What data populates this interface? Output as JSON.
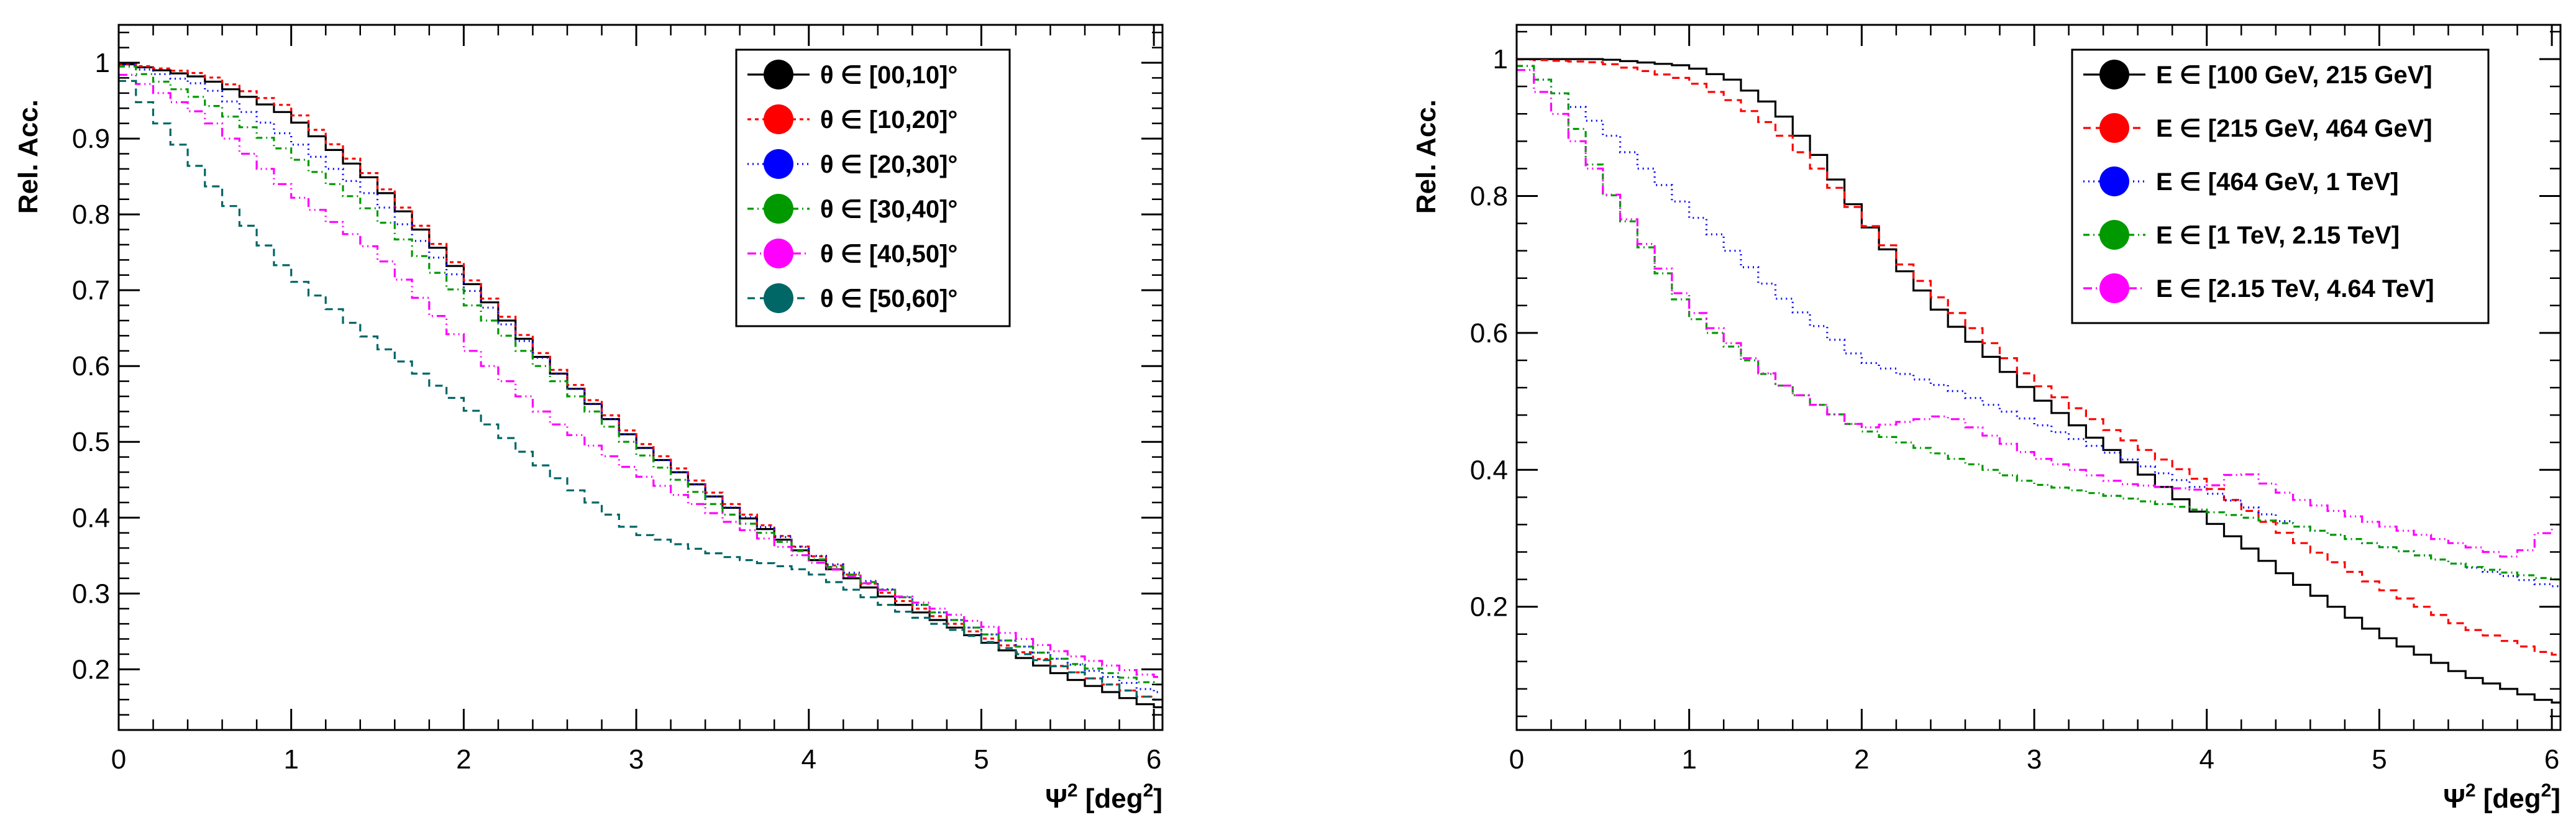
{
  "chart_data": [
    {
      "type": "line",
      "xlabel": "Ψ",
      "xlabel_units": " [deg",
      "xlabel_sup": "2",
      "xlabel_units_close": "]",
      "xlabel_sup_prefix": "2",
      "ylabel": "Rel. Acc.",
      "xlim": [
        0,
        6.05
      ],
      "ylim": [
        0.12,
        1.05
      ],
      "xticks": [
        0,
        1,
        2,
        3,
        4,
        5,
        6
      ],
      "xtick_labels": [
        "0",
        "1",
        "2",
        "3",
        "4",
        "5",
        "6"
      ],
      "yticks": [
        0.2,
        0.3,
        0.4,
        0.5,
        0.6,
        0.7,
        0.8,
        0.9,
        1
      ],
      "ytick_labels": [
        "0.2",
        "0.3",
        "0.4",
        "0.5",
        "0.6",
        "0.7",
        "0.8",
        "0.9",
        "1"
      ],
      "legend_position": "top-right",
      "series": [
        {
          "name": "θ ∈ [00,10]°",
          "color": "#000000",
          "dash": "solid",
          "x": [
            0,
            0.5,
            1,
            1.5,
            2,
            2.5,
            3,
            3.5,
            4,
            4.5,
            5,
            5.5,
            6
          ],
          "y": [
            1.0,
            0.98,
            0.93,
            0.84,
            0.72,
            0.6,
            0.5,
            0.42,
            0.35,
            0.29,
            0.24,
            0.19,
            0.15
          ]
        },
        {
          "name": "θ ∈ [10,20]°",
          "color": "#ff0000",
          "dash": "6,6",
          "x": [
            0,
            0.5,
            1,
            1.5,
            2,
            2.5,
            3,
            3.5,
            4,
            4.5,
            5,
            5.5,
            6
          ],
          "y": [
            1.0,
            0.985,
            0.94,
            0.845,
            0.725,
            0.605,
            0.505,
            0.425,
            0.355,
            0.295,
            0.245,
            0.2,
            0.16
          ]
        },
        {
          "name": "θ ∈ [20,30]°",
          "color": "#0000ff",
          "dash": "2,6",
          "x": [
            0,
            0.5,
            1,
            1.5,
            2,
            2.5,
            3,
            3.5,
            4,
            4.5,
            5,
            5.5,
            6
          ],
          "y": [
            1.0,
            0.97,
            0.9,
            0.82,
            0.71,
            0.6,
            0.5,
            0.42,
            0.355,
            0.3,
            0.25,
            0.21,
            0.17
          ]
        },
        {
          "name": "θ ∈ [30,40]°",
          "color": "#009900",
          "dash": "10,6,2,6",
          "x": [
            0,
            0.5,
            1,
            1.5,
            2,
            2.5,
            3,
            3.5,
            4,
            4.5,
            5,
            5.5,
            6
          ],
          "y": [
            1.0,
            0.95,
            0.88,
            0.8,
            0.69,
            0.59,
            0.49,
            0.41,
            0.35,
            0.3,
            0.25,
            0.21,
            0.18
          ]
        },
        {
          "name": "θ ∈ [40,50]°",
          "color": "#ff00ff",
          "dash": "14,6,2,6,2,6",
          "x": [
            0,
            0.5,
            1,
            1.5,
            2,
            2.5,
            3,
            3.5,
            4,
            4.5,
            5,
            5.5,
            6
          ],
          "y": [
            0.99,
            0.93,
            0.83,
            0.75,
            0.63,
            0.53,
            0.46,
            0.4,
            0.345,
            0.3,
            0.26,
            0.22,
            0.19
          ]
        },
        {
          "name": "θ ∈ [50,60]°",
          "color": "#006666",
          "dash": "12,8",
          "x": [
            0,
            0.5,
            1,
            1.5,
            2,
            2.5,
            3,
            3.5,
            4,
            4.5,
            5,
            5.5,
            6
          ],
          "y": [
            0.99,
            0.85,
            0.72,
            0.63,
            0.55,
            0.46,
            0.38,
            0.35,
            0.33,
            0.28,
            0.24,
            0.2,
            0.16
          ]
        }
      ]
    },
    {
      "type": "line",
      "xlabel": "Ψ",
      "xlabel_units": " [deg",
      "xlabel_sup": "2",
      "xlabel_units_close": "]",
      "xlabel_sup_prefix": "2",
      "ylabel": "Rel. Acc.",
      "xlim": [
        0,
        6.05
      ],
      "ylim": [
        0.02,
        1.05
      ],
      "xticks": [
        0,
        1,
        2,
        3,
        4,
        5,
        6
      ],
      "xtick_labels": [
        "0",
        "1",
        "2",
        "3",
        "4",
        "5",
        "6"
      ],
      "yticks": [
        0.2,
        0.4,
        0.6,
        0.8,
        1
      ],
      "ytick_labels": [
        "0.2",
        "0.4",
        "0.6",
        "0.8",
        "1"
      ],
      "legend_position": "top-right",
      "series": [
        {
          "name": "E ∈ [100 GeV, 215 GeV]",
          "color": "#000000",
          "dash": "solid",
          "x": [
            0,
            0.5,
            1,
            1.25,
            1.5,
            1.75,
            2,
            2.25,
            2.5,
            3,
            3.5,
            4,
            4.5,
            5,
            5.5,
            6
          ],
          "y": [
            1.0,
            1.0,
            0.99,
            0.97,
            0.93,
            0.86,
            0.77,
            0.69,
            0.62,
            0.51,
            0.42,
            0.33,
            0.24,
            0.16,
            0.1,
            0.06
          ]
        },
        {
          "name": "E ∈ [215 GeV, 464 GeV]",
          "color": "#ff0000",
          "dash": "12,8",
          "x": [
            0,
            0.5,
            1,
            1.25,
            1.5,
            1.75,
            2,
            2.25,
            2.5,
            3,
            3.5,
            4,
            4.5,
            5,
            5.5,
            6
          ],
          "y": [
            1.0,
            0.995,
            0.97,
            0.94,
            0.9,
            0.84,
            0.77,
            0.7,
            0.64,
            0.53,
            0.45,
            0.38,
            0.3,
            0.23,
            0.17,
            0.13
          ]
        },
        {
          "name": "E ∈ [464 GeV, 1 TeV]",
          "color": "#0000ff",
          "dash": "2,6",
          "x": [
            0,
            0.5,
            1,
            1.5,
            2,
            2.5,
            3,
            3.5,
            4,
            4.5,
            5,
            5.5,
            6
          ],
          "y": [
            1.0,
            0.9,
            0.78,
            0.66,
            0.56,
            0.52,
            0.47,
            0.42,
            0.37,
            0.32,
            0.29,
            0.26,
            0.23
          ]
        },
        {
          "name": "E ∈ [1 TeV, 2.15 TeV]",
          "color": "#009900",
          "dash": "10,6,2,6",
          "x": [
            0,
            0.25,
            0.5,
            1,
            1.5,
            2,
            2.5,
            3,
            3.5,
            4,
            4.5,
            5,
            5.5,
            6
          ],
          "y": [
            1.0,
            0.95,
            0.82,
            0.63,
            0.53,
            0.46,
            0.42,
            0.38,
            0.36,
            0.34,
            0.32,
            0.29,
            0.26,
            0.24
          ]
        },
        {
          "name": "E ∈ [2.15 TeV, 4.64 TeV]",
          "color": "#ff00ff",
          "dash": "14,6,2,6,2,6",
          "x": [
            0,
            0.25,
            0.5,
            1,
            1.5,
            2,
            2.5,
            3,
            3.5,
            4,
            4.2,
            4.5,
            5,
            5.5,
            5.8,
            6
          ],
          "y": [
            1.0,
            0.92,
            0.82,
            0.64,
            0.53,
            0.46,
            0.48,
            0.42,
            0.38,
            0.37,
            0.4,
            0.36,
            0.32,
            0.29,
            0.27,
            0.32
          ]
        }
      ]
    }
  ]
}
